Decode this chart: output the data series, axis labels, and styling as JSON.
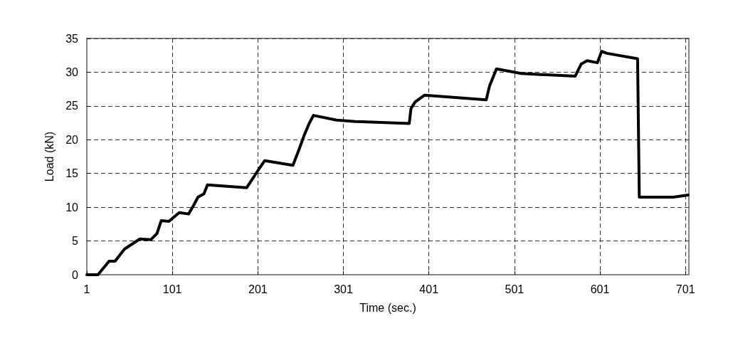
{
  "chart_data": {
    "type": "line",
    "xlabel": "Time (sec.)",
    "ylabel": "Load (kN)",
    "x": [
      1,
      14,
      27,
      34,
      45,
      63,
      76,
      83,
      88,
      97,
      109,
      120,
      126,
      131,
      138,
      142,
      188,
      202,
      209,
      242,
      249,
      255,
      261,
      266,
      293,
      315,
      378,
      380,
      385,
      396,
      468,
      472,
      480,
      509,
      572,
      579,
      586,
      598,
      603,
      609,
      645,
      647,
      687,
      704
    ],
    "series": [
      {
        "color": "#000000",
        "values": [
          0,
          0,
          2.0,
          2.0,
          3.8,
          5.3,
          5.2,
          6.1,
          8.0,
          7.9,
          9.2,
          9.0,
          10.3,
          11.5,
          12,
          13.3,
          12.9,
          15.6,
          16.9,
          16.2,
          18.5,
          20.6,
          22.4,
          23.6,
          22.9,
          22.7,
          22.4,
          24.6,
          25.6,
          26.6,
          25.9,
          28.0,
          30.5,
          29.8,
          29.4,
          31.2,
          31.7,
          31.4,
          33.1,
          32.8,
          32.0,
          11.5,
          11.5,
          11.8
        ]
      }
    ],
    "xlim": [
      1,
      705
    ],
    "xticks": [
      1,
      101,
      201,
      301,
      401,
      501,
      601,
      701
    ],
    "ylim": [
      0,
      35
    ],
    "yticks": [
      0,
      5,
      10,
      15,
      20,
      25,
      30,
      35
    ],
    "grid": true,
    "marker": "none",
    "line_style": "solid"
  }
}
